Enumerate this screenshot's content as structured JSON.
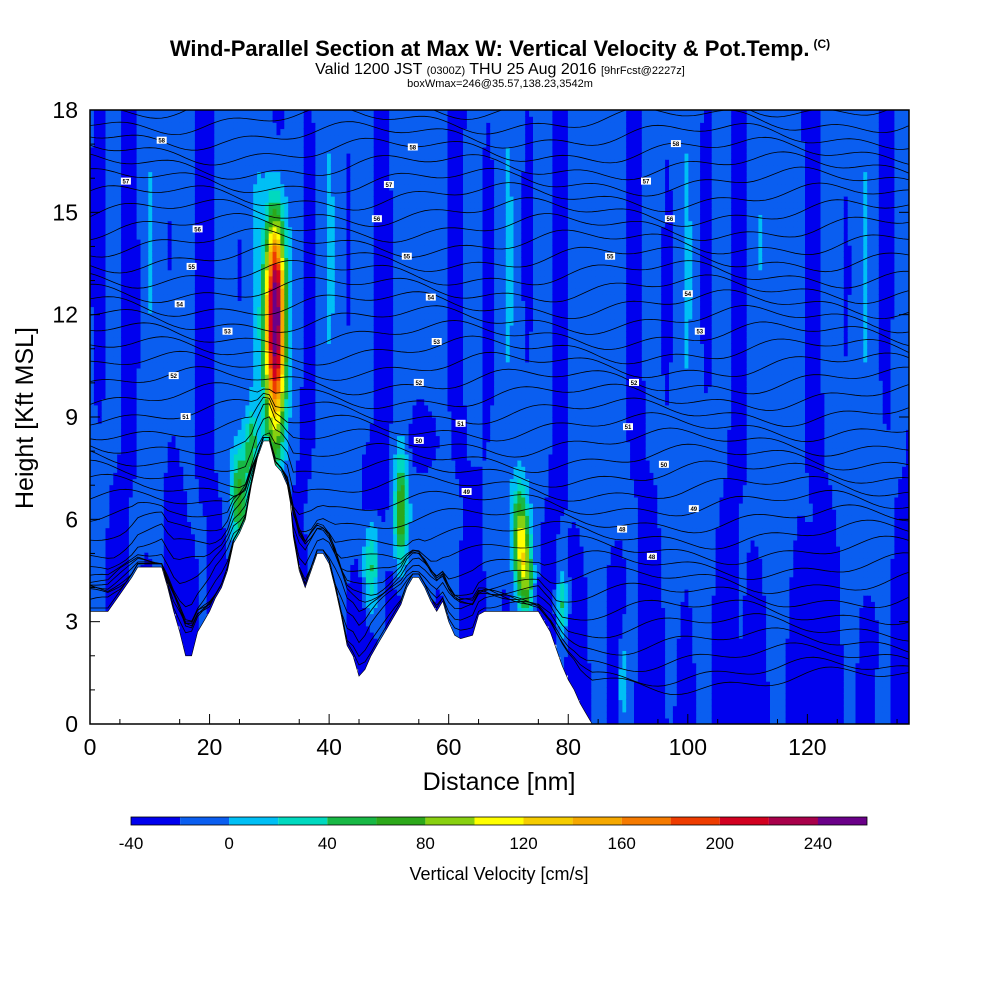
{
  "header": {
    "title": "Wind-Parallel Section at Max W: Vertical Velocity & Pot.Temp.",
    "copyright": "(C)",
    "valid_prefix": "Valid 1200 JST",
    "valid_utc": "(0300Z)",
    "valid_date": "THU 25 Aug 2016",
    "forecast": "[9hrFcst@2227z]",
    "boxinfo": "boxWmax=246@35.57,138.23,3542m"
  },
  "chart_data": {
    "type": "heatmap",
    "xlabel": "Distance [nm]",
    "ylabel": "Height [Kft MSL]",
    "xlim": [
      0,
      137
    ],
    "ylim": [
      0,
      18
    ],
    "x_ticks": [
      0,
      20,
      40,
      60,
      80,
      100,
      120
    ],
    "y_ticks": [
      0,
      3,
      6,
      9,
      12,
      15,
      18
    ],
    "colorbar": {
      "label": "Vertical Velocity [cm/s]",
      "tick_values": [
        -40,
        0,
        40,
        80,
        120,
        160,
        200,
        240
      ],
      "tick_labels": [
        "-40",
        "0",
        "40",
        "80",
        "120",
        "160",
        "200",
        "240"
      ],
      "range": [
        -40,
        260
      ],
      "colors": [
        "#0000ee",
        "#0a5ef0",
        "#00bff5",
        "#00d9bf",
        "#18b845",
        "#2ca81a",
        "#88d010",
        "#ffff00",
        "#f5cc00",
        "#f5a800",
        "#f57a00",
        "#ee3c00",
        "#d20020",
        "#a8004a",
        "#6a0088"
      ]
    },
    "background_value": -15,
    "terrain_profile_kft": [
      [
        0,
        3.3
      ],
      [
        3,
        3.3
      ],
      [
        5,
        3.8
      ],
      [
        7,
        4.3
      ],
      [
        8,
        4.6
      ],
      [
        12,
        4.6
      ],
      [
        13,
        4.0
      ],
      [
        14,
        3.3
      ],
      [
        15,
        2.7
      ],
      [
        16,
        2.0
      ],
      [
        17,
        2.0
      ],
      [
        18,
        2.7
      ],
      [
        19,
        3.0
      ],
      [
        20,
        3.3
      ],
      [
        21,
        3.7
      ],
      [
        22,
        4.0
      ],
      [
        23,
        4.5
      ],
      [
        24,
        5.3
      ],
      [
        25,
        5.6
      ],
      [
        26,
        6.0
      ],
      [
        27,
        7.0
      ],
      [
        28,
        7.8
      ],
      [
        29,
        8.3
      ],
      [
        30,
        8.3
      ],
      [
        31,
        7.6
      ],
      [
        32,
        7.4
      ],
      [
        33,
        7.0
      ],
      [
        33.5,
        6.5
      ],
      [
        34,
        5.5
      ],
      [
        35,
        4.5
      ],
      [
        36,
        4.0
      ],
      [
        37,
        4.5
      ],
      [
        38,
        5.0
      ],
      [
        39,
        5.0
      ],
      [
        40,
        4.7
      ],
      [
        41,
        4.0
      ],
      [
        42,
        3.2
      ],
      [
        43,
        2.3
      ],
      [
        44,
        2.0
      ],
      [
        45,
        1.4
      ],
      [
        46,
        1.6
      ],
      [
        47,
        2.0
      ],
      [
        48,
        2.3
      ],
      [
        49,
        2.6
      ],
      [
        50,
        2.9
      ],
      [
        51,
        3.2
      ],
      [
        52,
        3.5
      ],
      [
        53,
        4.0
      ],
      [
        54,
        4.3
      ],
      [
        55,
        4.3
      ],
      [
        56,
        4.0
      ],
      [
        57,
        3.6
      ],
      [
        58,
        3.3
      ],
      [
        59,
        3.6
      ],
      [
        60,
        3.0
      ],
      [
        61,
        2.6
      ],
      [
        62,
        2.5
      ],
      [
        64,
        2.6
      ],
      [
        65,
        3.2
      ],
      [
        66,
        3.3
      ],
      [
        75,
        3.3
      ],
      [
        76,
        3.0
      ],
      [
        77,
        2.7
      ],
      [
        78,
        2.2
      ],
      [
        79,
        1.7
      ],
      [
        80,
        1.3
      ],
      [
        81,
        1.0
      ],
      [
        82,
        0.6
      ],
      [
        83,
        0.3
      ],
      [
        84,
        0.0
      ],
      [
        137,
        0.0
      ]
    ],
    "contour_labels": [
      {
        "x": 12,
        "y": 17.1,
        "text": "58"
      },
      {
        "x": 54,
        "y": 16.9,
        "text": "58"
      },
      {
        "x": 98,
        "y": 17.0,
        "text": "58"
      },
      {
        "x": 6,
        "y": 15.9,
        "text": "57"
      },
      {
        "x": 50,
        "y": 15.8,
        "text": "57"
      },
      {
        "x": 93,
        "y": 15.9,
        "text": "57"
      },
      {
        "x": 18,
        "y": 14.5,
        "text": "56"
      },
      {
        "x": 48,
        "y": 14.8,
        "text": "56"
      },
      {
        "x": 97,
        "y": 14.8,
        "text": "56"
      },
      {
        "x": 17,
        "y": 13.4,
        "text": "55"
      },
      {
        "x": 53,
        "y": 13.7,
        "text": "55"
      },
      {
        "x": 87,
        "y": 13.7,
        "text": "55"
      },
      {
        "x": 15,
        "y": 12.3,
        "text": "54"
      },
      {
        "x": 57,
        "y": 12.5,
        "text": "54"
      },
      {
        "x": 100,
        "y": 12.6,
        "text": "54"
      },
      {
        "x": 23,
        "y": 11.5,
        "text": "53"
      },
      {
        "x": 58,
        "y": 11.2,
        "text": "53"
      },
      {
        "x": 102,
        "y": 11.5,
        "text": "53"
      },
      {
        "x": 14,
        "y": 10.2,
        "text": "52"
      },
      {
        "x": 55,
        "y": 10.0,
        "text": "52"
      },
      {
        "x": 91,
        "y": 10.0,
        "text": "52"
      },
      {
        "x": 16,
        "y": 9.0,
        "text": "51"
      },
      {
        "x": 62,
        "y": 8.8,
        "text": "51"
      },
      {
        "x": 90,
        "y": 8.7,
        "text": "51"
      },
      {
        "x": 55,
        "y": 8.3,
        "text": "50"
      },
      {
        "x": 96,
        "y": 7.6,
        "text": "50"
      },
      {
        "x": 63,
        "y": 6.8,
        "text": "49"
      },
      {
        "x": 101,
        "y": 6.3,
        "text": "49"
      },
      {
        "x": 89,
        "y": 5.7,
        "text": "48"
      },
      {
        "x": 94,
        "y": 4.9,
        "text": "48"
      }
    ],
    "updraft_cells": [
      {
        "x": 31,
        "y": 11.4,
        "sx": 1.2,
        "sy": 2.2,
        "value": 262
      },
      {
        "x": 31,
        "y": 13.2,
        "sx": 1.0,
        "sy": 1.3,
        "value": 70
      },
      {
        "x": 25,
        "y": 6.7,
        "sx": 1.0,
        "sy": 1.0,
        "value": 80
      },
      {
        "x": 27,
        "y": 8.2,
        "sx": 0.8,
        "sy": 0.7,
        "value": 60
      },
      {
        "x": 47,
        "y": 4.6,
        "sx": 0.9,
        "sy": 1.0,
        "value": 65
      },
      {
        "x": 52,
        "y": 6.2,
        "sx": 0.8,
        "sy": 1.2,
        "value": 100
      },
      {
        "x": 72,
        "y": 5.5,
        "sx": 0.9,
        "sy": 1.0,
        "value": 110
      },
      {
        "x": 73,
        "y": 4.3,
        "sx": 0.8,
        "sy": 0.8,
        "value": 80
      },
      {
        "x": 79,
        "y": 3.5,
        "sx": 0.6,
        "sy": 0.7,
        "value": 60
      },
      {
        "x": 89,
        "y": 1.5,
        "sx": 0.6,
        "sy": 1.2,
        "value": 50
      }
    ],
    "downdraft_cells": [
      {
        "x": 14,
        "y": 6.1,
        "sx": 1.0,
        "sy": 1.3,
        "value": -40
      },
      {
        "x": 14,
        "y": 4.7,
        "sx": 1.0,
        "sy": 1.0,
        "value": -25
      },
      {
        "x": 56,
        "y": 8.4,
        "sx": 1.5,
        "sy": 0.6,
        "value": -40
      },
      {
        "x": 44,
        "y": 2.9,
        "sx": 0.9,
        "sy": 1.1,
        "value": -40
      },
      {
        "x": 47,
        "y": 7.0,
        "sx": 1.2,
        "sy": 0.8,
        "value": -20
      },
      {
        "x": 88,
        "y": 2.9,
        "sx": 1.0,
        "sy": 1.2,
        "value": -38
      },
      {
        "x": 121,
        "y": 3.0,
        "sx": 0.9,
        "sy": 1.2,
        "value": -36
      },
      {
        "x": 119,
        "y": 5.2,
        "sx": 0.5,
        "sy": 0.5,
        "value": -20
      },
      {
        "x": 131,
        "y": 2.5,
        "sx": 0.6,
        "sy": 0.6,
        "value": -20
      }
    ]
  }
}
